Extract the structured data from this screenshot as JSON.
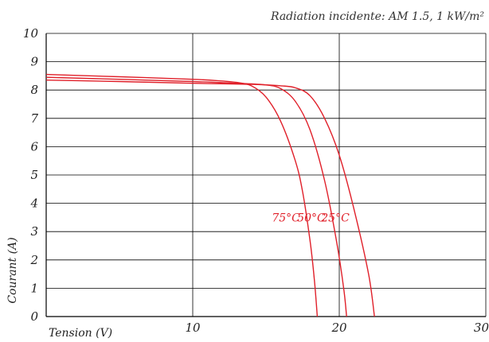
{
  "chart_data": {
    "type": "line",
    "subtitle": "Radiation incidente: AM 1.5, 1 kW/m²",
    "xlabel": "Tension (V)",
    "ylabel": "Courant (A)",
    "xlim": [
      0,
      30
    ],
    "ylim": [
      0,
      10
    ],
    "x_ticks": [
      "10",
      "20",
      "30"
    ],
    "y_ticks": [
      "0",
      "1",
      "2",
      "3",
      "4",
      "5",
      "6",
      "7",
      "8",
      "9",
      "10"
    ],
    "grid": true,
    "curve_color": "#e0202a",
    "series": [
      {
        "name": "75°C",
        "points": [
          [
            0,
            8.55
          ],
          [
            5,
            8.47
          ],
          [
            10,
            8.38
          ],
          [
            12,
            8.32
          ],
          [
            13,
            8.27
          ],
          [
            14,
            8.15
          ],
          [
            15,
            7.75
          ],
          [
            16,
            6.9
          ],
          [
            17,
            5.5
          ],
          [
            17.5,
            4.4
          ],
          [
            18,
            2.7
          ],
          [
            18.3,
            1.3
          ],
          [
            18.5,
            0
          ]
        ]
      },
      {
        "name": "50°C",
        "points": [
          [
            0,
            8.45
          ],
          [
            5,
            8.38
          ],
          [
            10,
            8.3
          ],
          [
            13,
            8.24
          ],
          [
            15,
            8.18
          ],
          [
            16,
            8.05
          ],
          [
            17,
            7.6
          ],
          [
            18,
            6.6
          ],
          [
            19,
            4.8
          ],
          [
            19.8,
            2.7
          ],
          [
            20.3,
            1.0
          ],
          [
            20.5,
            0
          ]
        ]
      },
      {
        "name": "25°C",
        "points": [
          [
            0,
            8.35
          ],
          [
            5,
            8.3
          ],
          [
            10,
            8.24
          ],
          [
            14,
            8.2
          ],
          [
            16,
            8.15
          ],
          [
            17,
            8.08
          ],
          [
            18,
            7.8
          ],
          [
            19,
            7.0
          ],
          [
            20,
            5.7
          ],
          [
            21,
            3.8
          ],
          [
            22,
            1.5
          ],
          [
            22.4,
            0
          ]
        ]
      }
    ]
  }
}
